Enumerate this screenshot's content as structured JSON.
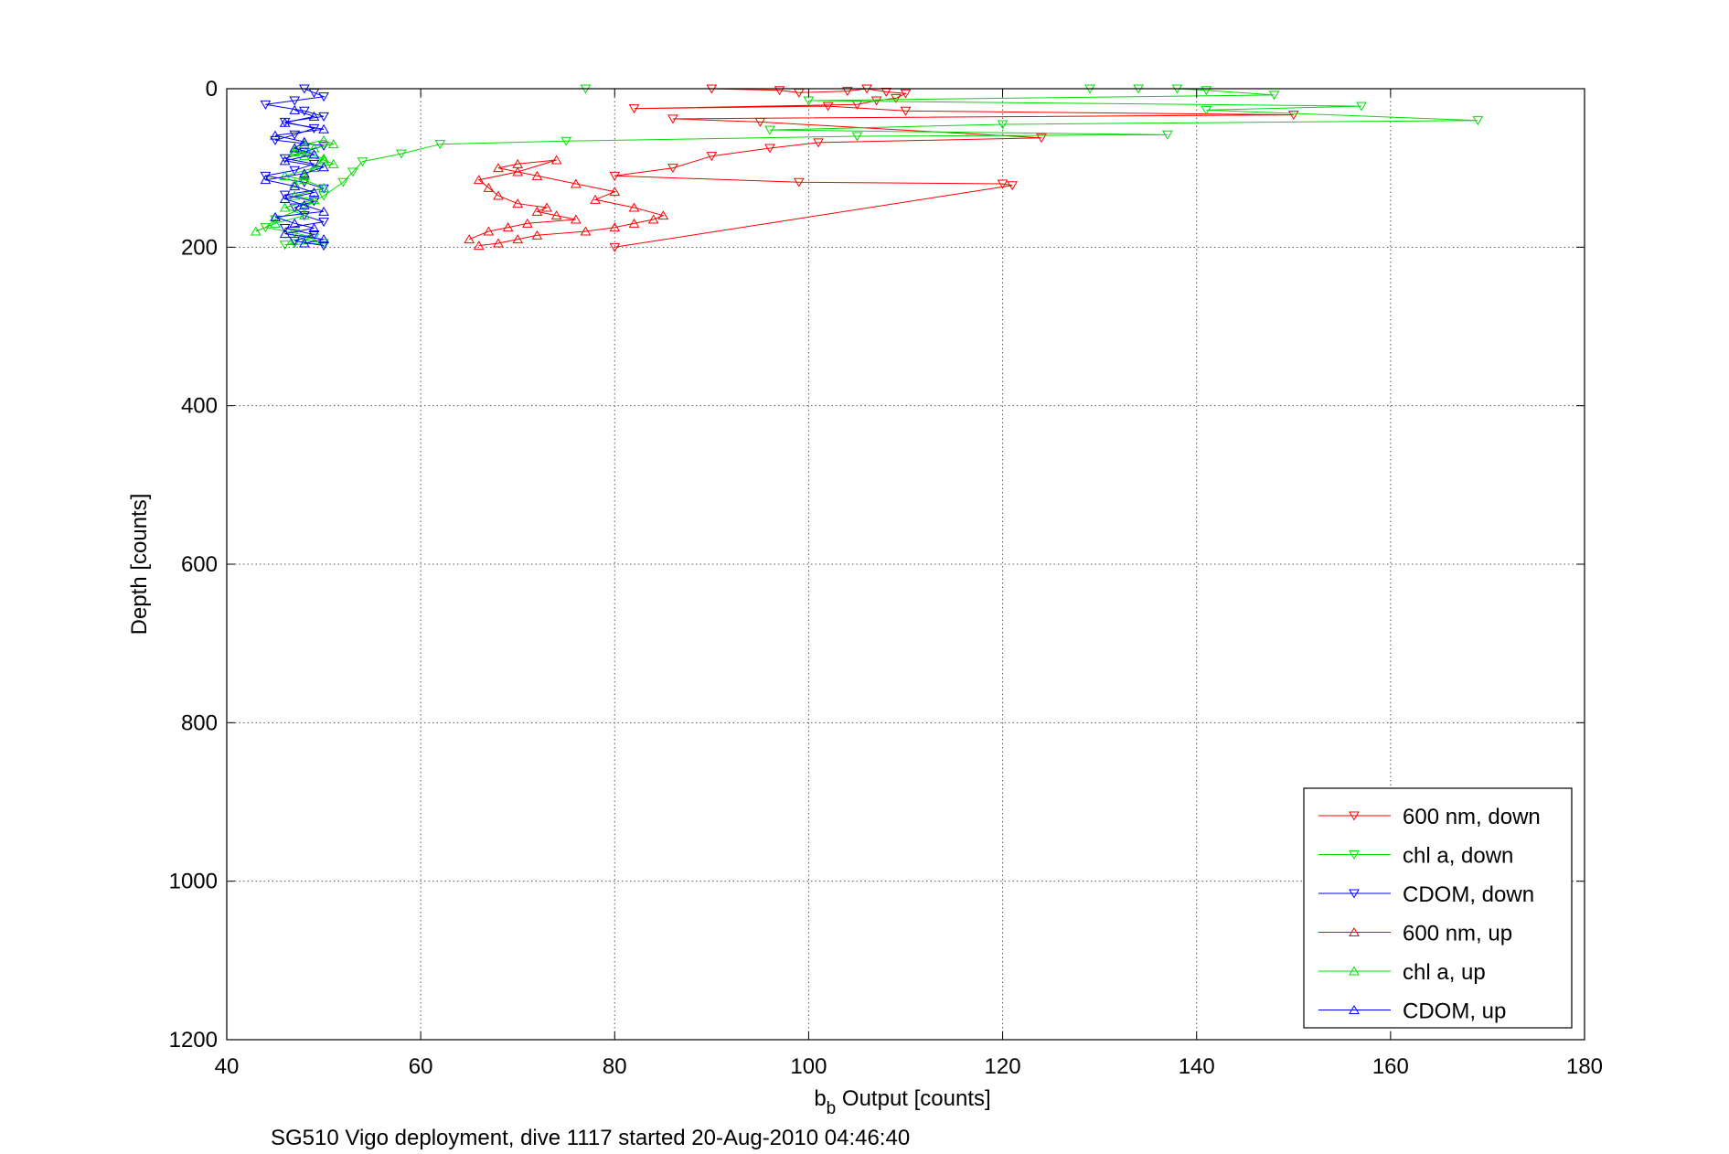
{
  "chart_data": {
    "type": "line",
    "xlabel_main": "b",
    "xlabel_sub": "b",
    "xlabel_rest": " Output [counts]",
    "ylabel": "Depth [counts]",
    "caption": "SG510 Vigo deployment, dive 1117 started 20-Aug-2010 04:46:40",
    "xlim": [
      40,
      180
    ],
    "ylim": [
      0,
      1200
    ],
    "y_reversed": true,
    "grid": true,
    "legend_position": "bottom-right",
    "xticks": [
      40,
      60,
      80,
      100,
      120,
      140,
      160,
      180
    ],
    "yticks": [
      0,
      200,
      400,
      600,
      800,
      1000,
      1200
    ],
    "series": [
      {
        "name": "600 nm, down",
        "color": "#ff0000",
        "marker": "triangle-down",
        "x": [
          90,
          97,
          99,
          104,
          106,
          108,
          110,
          109,
          107,
          105,
          82,
          102,
          110,
          150,
          86,
          95,
          124,
          101,
          96,
          90,
          86,
          80,
          99,
          120,
          121,
          80
        ],
        "y": [
          0,
          2,
          5,
          3,
          0,
          4,
          6,
          12,
          15,
          20,
          25,
          22,
          28,
          33,
          38,
          42,
          62,
          68,
          75,
          85,
          100,
          110,
          118,
          120,
          122,
          200
        ]
      },
      {
        "name": "chl a, down",
        "color": "#00dd00",
        "marker": "triangle-down",
        "x": [
          77,
          129,
          134,
          138,
          141,
          148,
          100,
          157,
          141,
          169,
          120,
          96,
          137,
          105,
          75,
          62,
          58,
          54,
          53,
          52,
          50,
          48,
          45,
          44,
          47,
          49,
          48,
          50,
          46,
          47
        ],
        "y": [
          0,
          0,
          0,
          0,
          2,
          8,
          15,
          22,
          27,
          40,
          45,
          52,
          58,
          60,
          66,
          70,
          82,
          92,
          105,
          118,
          135,
          150,
          165,
          175,
          182,
          188,
          190,
          195,
          197,
          195
        ]
      },
      {
        "name": "CDOM, down",
        "color": "#0000ff",
        "marker": "triangle-down",
        "x": [
          48,
          49,
          50,
          47,
          44,
          48,
          50,
          46,
          49,
          47,
          45,
          50,
          48,
          46,
          49,
          47,
          44,
          48,
          50,
          46,
          49,
          47,
          48,
          50,
          46,
          49,
          47,
          50
        ],
        "y": [
          0,
          5,
          10,
          15,
          20,
          28,
          35,
          42,
          50,
          58,
          65,
          72,
          80,
          88,
          95,
          103,
          110,
          118,
          126,
          134,
          142,
          150,
          160,
          168,
          176,
          184,
          192,
          198
        ]
      },
      {
        "name": "600 nm, up",
        "color": "#ff0000",
        "marker": "triangle-up",
        "x": [
          66,
          68,
          70,
          72,
          77,
          80,
          82,
          84,
          85,
          82,
          78,
          80,
          76,
          72,
          68,
          70,
          74,
          70,
          66,
          67,
          68,
          70,
          73,
          72,
          74,
          76,
          71,
          69,
          67,
          65
        ],
        "y": [
          198,
          195,
          190,
          185,
          180,
          175,
          170,
          165,
          160,
          150,
          140,
          130,
          120,
          110,
          100,
          95,
          90,
          105,
          115,
          125,
          135,
          145,
          150,
          155,
          160,
          165,
          170,
          175,
          180,
          190
        ]
      },
      {
        "name": "chl a, up",
        "color": "#00dd00",
        "marker": "triangle-up",
        "x": [
          43,
          45,
          48,
          46,
          49,
          47,
          50,
          48,
          46,
          49,
          51,
          50,
          48,
          47,
          49,
          51,
          50,
          48,
          47,
          50,
          49,
          48,
          47
        ],
        "y": [
          180,
          170,
          160,
          150,
          140,
          135,
          125,
          115,
          110,
          100,
          95,
          90,
          85,
          80,
          75,
          70,
          65,
          70,
          78,
          88,
          100,
          110,
          120
        ]
      },
      {
        "name": "CDOM, up",
        "color": "#0000ff",
        "marker": "triangle-up",
        "x": [
          48,
          50,
          46,
          49,
          47,
          45,
          50,
          48,
          46,
          49,
          47,
          44,
          48,
          50,
          46,
          49,
          47,
          48,
          45,
          50,
          46,
          49,
          47
        ],
        "y": [
          195,
          190,
          183,
          176,
          170,
          162,
          155,
          147,
          139,
          131,
          123,
          115,
          107,
          99,
          91,
          83,
          75,
          67,
          59,
          51,
          43,
          35,
          27
        ]
      }
    ]
  }
}
